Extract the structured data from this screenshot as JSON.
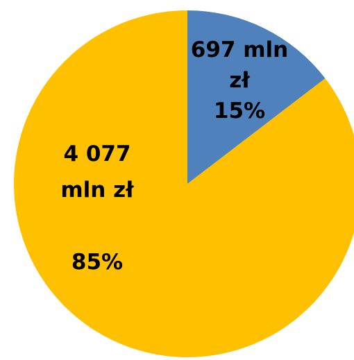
{
  "chart_data": {
    "type": "pie",
    "title": "",
    "slices": [
      {
        "value": 697,
        "percent": 15,
        "color": "#4F81BD",
        "label_lines": [
          "697 mln",
          "zł",
          "15%"
        ]
      },
      {
        "value": 4077,
        "percent": 85,
        "color": "#FFC000",
        "label_lines": [
          "4 077",
          "mln zł",
          "",
          "85%"
        ]
      }
    ]
  }
}
